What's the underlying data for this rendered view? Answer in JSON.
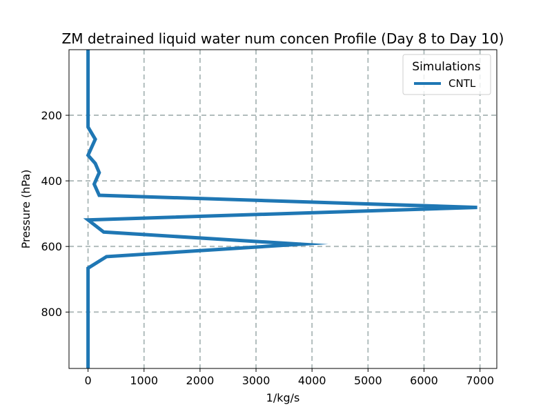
{
  "chart_data": {
    "type": "line",
    "title": "ZM detrained liquid water num concen Profile (Day 8 to Day 10)",
    "xlabel": "1/kg/s",
    "ylabel": "Pressure (hPa)",
    "xlim": [
      -340,
      7300
    ],
    "ylim": [
      972,
      0
    ],
    "y_inverted": true,
    "x_ticks": [
      0,
      1000,
      2000,
      3000,
      4000,
      5000,
      6000,
      7000
    ],
    "y_ticks": [
      200,
      400,
      600,
      800
    ],
    "grid": true,
    "legend": {
      "title": "Simulations",
      "placement": "top-right"
    },
    "series": [
      {
        "name": "CNTL",
        "color": "#1f77b4",
        "points": [
          {
            "x": 0,
            "y": 0
          },
          {
            "x": 0,
            "y": 236
          },
          {
            "x": 130,
            "y": 273
          },
          {
            "x": 0,
            "y": 322
          },
          {
            "x": 130,
            "y": 347
          },
          {
            "x": 200,
            "y": 375
          },
          {
            "x": 110,
            "y": 410
          },
          {
            "x": 200,
            "y": 444
          },
          {
            "x": 6950,
            "y": 481
          },
          {
            "x": 0,
            "y": 519
          },
          {
            "x": 280,
            "y": 556
          },
          {
            "x": 3800,
            "y": 593
          },
          {
            "x": 330,
            "y": 631
          },
          {
            "x": 0,
            "y": 666
          },
          {
            "x": 0,
            "y": 972
          }
        ]
      }
    ]
  },
  "colors": {
    "series_line": "#1f77b4",
    "grid": "#b0bcbc",
    "axes": "#000000"
  }
}
